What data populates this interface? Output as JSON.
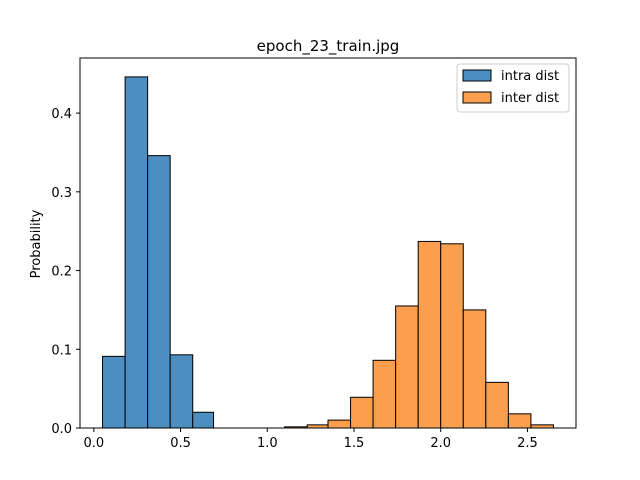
{
  "chart_data": {
    "type": "bar",
    "title": "epoch_23_train.jpg",
    "xlabel": "",
    "ylabel": "Probability",
    "xlim": [
      -0.08,
      2.78
    ],
    "ylim": [
      0,
      0.47
    ],
    "xticks": [
      0.0,
      0.5,
      1.0,
      1.5,
      2.0,
      2.5
    ],
    "xtick_labels": [
      "0.0",
      "0.5",
      "1.0",
      "1.5",
      "2.0",
      "2.5"
    ],
    "yticks": [
      0.0,
      0.1,
      0.2,
      0.3,
      0.4
    ],
    "ytick_labels": [
      "0.0",
      "0.1",
      "0.2",
      "0.3",
      "0.4"
    ],
    "legend_position": "top-right",
    "series": [
      {
        "name": "intra dist",
        "color": "#4c8ebf",
        "bins": [
          {
            "x0": 0.05,
            "x1": 0.18,
            "value": 0.091
          },
          {
            "x0": 0.18,
            "x1": 0.31,
            "value": 0.446
          },
          {
            "x0": 0.31,
            "x1": 0.44,
            "value": 0.346
          },
          {
            "x0": 0.44,
            "x1": 0.57,
            "value": 0.093
          },
          {
            "x0": 0.57,
            "x1": 0.69,
            "value": 0.02
          }
        ]
      },
      {
        "name": "inter dist",
        "color": "#f99f4e",
        "bins": [
          {
            "x0": 1.1,
            "x1": 1.23,
            "value": 0.0015
          },
          {
            "x0": 1.23,
            "x1": 1.35,
            "value": 0.004
          },
          {
            "x0": 1.35,
            "x1": 1.48,
            "value": 0.01
          },
          {
            "x0": 1.48,
            "x1": 1.61,
            "value": 0.039
          },
          {
            "x0": 1.61,
            "x1": 1.74,
            "value": 0.086
          },
          {
            "x0": 1.74,
            "x1": 1.87,
            "value": 0.155
          },
          {
            "x0": 1.87,
            "x1": 2.0,
            "value": 0.237
          },
          {
            "x0": 2.0,
            "x1": 2.13,
            "value": 0.234
          },
          {
            "x0": 2.13,
            "x1": 2.26,
            "value": 0.15
          },
          {
            "x0": 2.26,
            "x1": 2.39,
            "value": 0.058
          },
          {
            "x0": 2.39,
            "x1": 2.52,
            "value": 0.018
          },
          {
            "x0": 2.52,
            "x1": 2.65,
            "value": 0.004
          }
        ]
      }
    ]
  }
}
